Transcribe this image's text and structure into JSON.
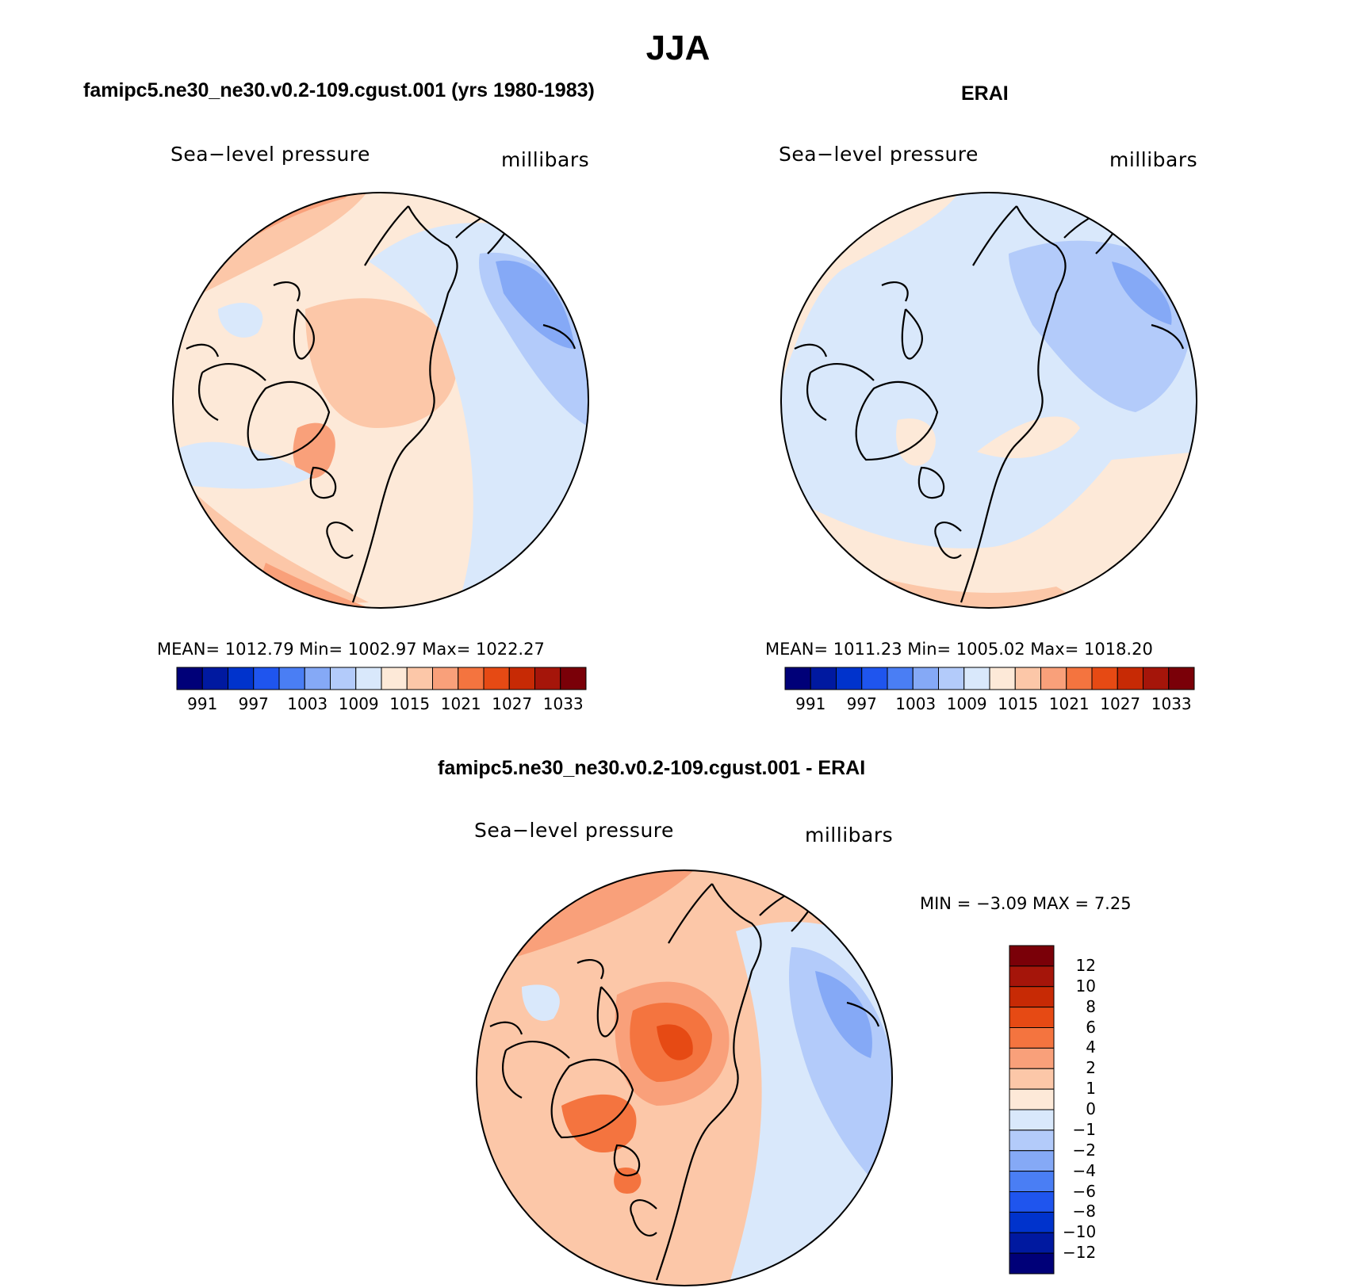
{
  "title": "JJA",
  "panels": [
    {
      "name": "model",
      "title": "famipc5.ne30_ne30.v0.2-109.cgust.001 (yrs 1980-1983)",
      "variable": "Sea−level pressure",
      "units": "millibars",
      "stats": "MEAN=  1012.79    Min=  1002.97    Max=  1022.27"
    },
    {
      "name": "erai",
      "title": "ERAI",
      "variable": "Sea−level pressure",
      "units": "millibars",
      "stats": "MEAN=  1011.23    Min=  1005.02    Max=  1018.20"
    },
    {
      "name": "diff",
      "title": "famipc5.ne30_ne30.v0.2-109.cgust.001 - ERAI",
      "variable": "Sea−level pressure",
      "units": "millibars",
      "stats": "MIN =   −3.09  MAX =     7.25"
    }
  ],
  "abs_colorbar": {
    "colors": [
      "#000078",
      "#0019a0",
      "#0033cc",
      "#1f55ee",
      "#4a7ef4",
      "#85a9f6",
      "#b3cbfa",
      "#d9e8fb",
      "#fde9d8",
      "#fcc7a8",
      "#f9a07a",
      "#f4743f",
      "#e64a14",
      "#c72a05",
      "#a5150a",
      "#7a0008"
    ],
    "tick_labels": [
      "991",
      "997",
      "1003",
      "1009",
      "1015",
      "1021",
      "1027",
      "1033"
    ]
  },
  "diff_colorbar": {
    "colors": [
      "#000078",
      "#0019a0",
      "#0033cc",
      "#1f55ee",
      "#4a7ef4",
      "#85a9f6",
      "#b3cbfa",
      "#d9e8fb",
      "#fde9d8",
      "#fcc7a8",
      "#f9a07a",
      "#f4743f",
      "#e64a14",
      "#c72a05",
      "#a5150a",
      "#7a0008"
    ],
    "tick_labels": [
      "12",
      "10",
      "8",
      "6",
      "4",
      "2",
      "1",
      "0",
      "−1",
      "−2",
      "−4",
      "−6",
      "−8",
      "−10",
      "−12"
    ]
  },
  "map_colors": {
    "model": {
      "base": "#fde9d8",
      "warm1": "#fcc7a8",
      "warm2": "#f9a07a",
      "warm3": "#f4743f",
      "cool1": "#d9e8fb",
      "cool2": "#b3cbfa",
      "cool3": "#85a9f6"
    },
    "erai": {
      "base": "#d9e8fb",
      "warm1": "#fde9d8",
      "warm2": "#fcc7a8",
      "warm3": "#f9a07a",
      "cool1": "#b3cbfa",
      "cool2": "#85a9f6",
      "cool3": "#85a9f6"
    },
    "diff": {
      "base": "#fcc7a8",
      "warm1": "#f9a07a",
      "warm2": "#f4743f",
      "warm3": "#e64a14",
      "cool1": "#d9e8fb",
      "cool2": "#b3cbfa",
      "cool3": "#85a9f6"
    }
  }
}
